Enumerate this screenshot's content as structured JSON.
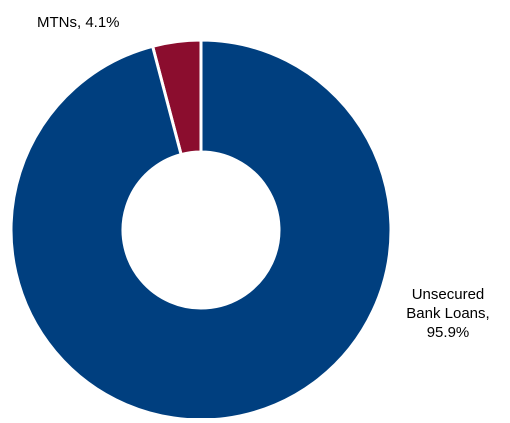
{
  "chart_data": {
    "type": "pie",
    "variant": "donut",
    "slices": [
      {
        "name": "MTNs",
        "value": 4.1,
        "value_label": "4.1%",
        "color": "#8b0d2e"
      },
      {
        "name": "Unsecured Bank Loans",
        "name_line1": "Unsecured",
        "name_line2": "Bank Loans,",
        "value": 95.9,
        "value_label": "95.9%",
        "color": "#003f7f"
      }
    ],
    "labels": {
      "mtns": "MTNs, 4.1%",
      "unsecured_line1": "Unsecured",
      "unsecured_line2": "Bank Loans,",
      "unsecured_line3": "95.9%"
    },
    "title": "",
    "legend": "none"
  }
}
